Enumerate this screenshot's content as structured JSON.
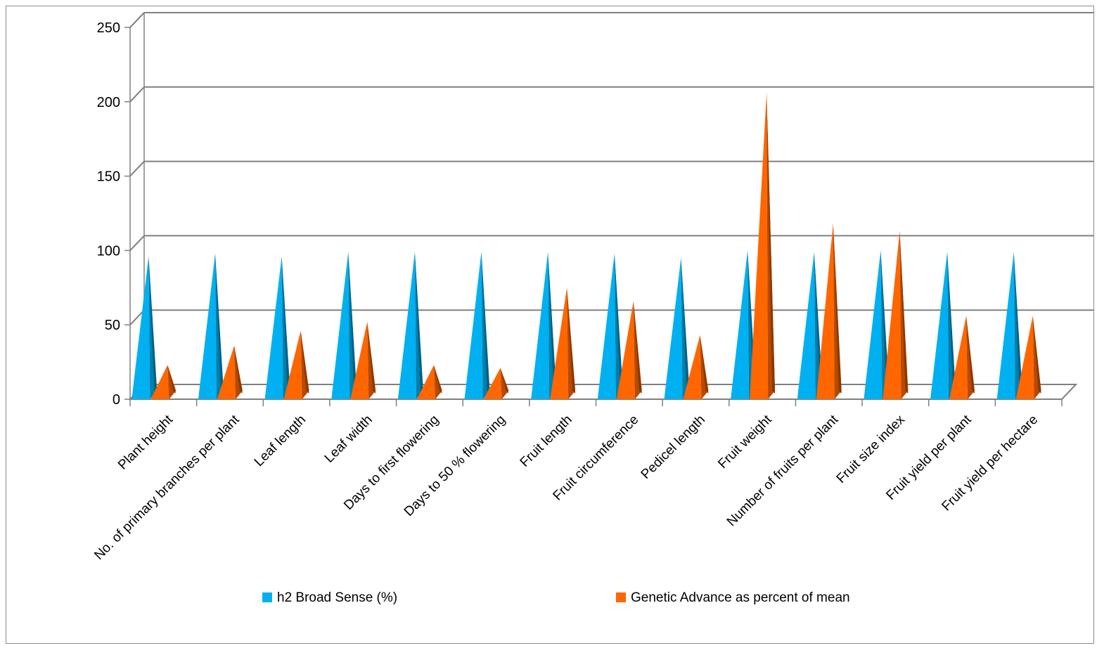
{
  "chart_data": {
    "type": "bar",
    "bar_shape": "3d-cone",
    "title": "",
    "xlabel": "",
    "ylabel": "",
    "ylim": [
      0,
      250
    ],
    "yticks": [
      "0",
      "50",
      "100",
      "150",
      "200",
      "250"
    ],
    "grid": true,
    "legend_position": "bottom",
    "categories": [
      "Plant height",
      "No. of primary branches per plant",
      "Leaf length",
      "Leaf width",
      "Days to first flowering",
      "Days to 50 % flowering",
      "Fruit length",
      "Fruit circumference",
      "Pedicel length",
      "Fruit weight",
      "Number of fruits per plant",
      "Fruit size index",
      "Fruit yield per plant",
      "Fruit yield per hectare"
    ],
    "series": [
      {
        "name": "h2 Broad Sense (%)",
        "color": "#00b0f0",
        "values": [
          96,
          98,
          96,
          99,
          99,
          99,
          99,
          98,
          95,
          100,
          99,
          100,
          99,
          99
        ]
      },
      {
        "name": "Genetic Advance as percent of mean",
        "color": "#ff6600",
        "values": [
          23,
          36,
          46,
          52,
          23,
          21,
          75,
          66,
          43,
          206,
          118,
          113,
          56,
          56
        ]
      }
    ]
  }
}
